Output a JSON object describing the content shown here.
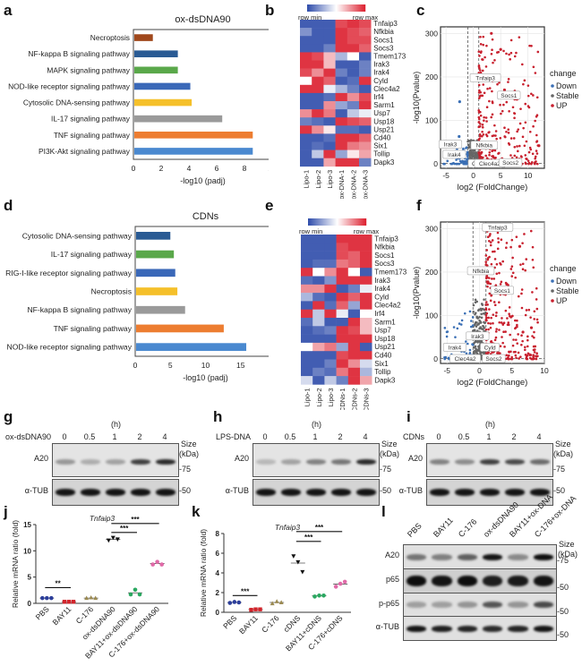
{
  "panel_labels": {
    "a": "a",
    "b": "b",
    "c": "c",
    "d": "d",
    "e": "e",
    "f": "f",
    "g": "g",
    "h": "h",
    "i": "i",
    "j": "j",
    "k": "k",
    "l": "l"
  },
  "chart_data": [
    {
      "id": "a",
      "type": "bar",
      "orientation": "horizontal",
      "title": "ox-dsDNA90",
      "xlabel": "-log10 (padj)",
      "xlim": [
        0,
        10
      ],
      "xticks": [
        0,
        2,
        4,
        6,
        8,
        10
      ],
      "categories": [
        "Necroptosis",
        "NF-kappa B signaling pathway",
        "MAPK signaling pathway",
        "NOD-like receptor signaling pathway",
        "Cytosolic DNA-sensing pathway",
        "IL-17 signaling pathway",
        "TNF signaling pathway",
        "PI3K-Akt signaling pathway"
      ],
      "values": [
        1.4,
        3.2,
        3.2,
        4.1,
        4.2,
        6.4,
        8.6,
        8.6
      ],
      "colors": [
        "#a0481c",
        "#2a5b94",
        "#5aa84a",
        "#3a68b8",
        "#f5c02a",
        "#9a9a9a",
        "#ed7d31",
        "#4a89d0"
      ]
    },
    {
      "id": "b",
      "type": "heatmap",
      "legend": {
        "min_label": "row min",
        "max_label": "row max"
      },
      "columns": [
        "Lipo-1",
        "Lipo-2",
        "Lipo-3",
        "ox-DNA-1",
        "ox-DNA-2",
        "ox-DNA-3"
      ],
      "rows": [
        "Tnfaip3",
        "Nfkbia",
        "Socs1",
        "Socs3",
        "Tmem173",
        "Irak3",
        "Irak4",
        "Cyld",
        "Clec4a2",
        "Irf4",
        "Sarm1",
        "Usp7",
        "Usp18",
        "Usp21",
        "Cd40",
        "Six1",
        "Tollip",
        "Dapk3"
      ],
      "values": [
        [
          -0.9,
          -0.9,
          -0.9,
          0.8,
          0.9,
          0.8
        ],
        [
          -0.6,
          -0.9,
          -0.9,
          0.9,
          0.8,
          0.7
        ],
        [
          -0.9,
          -0.9,
          -0.9,
          0.9,
          0.8,
          0.8
        ],
        [
          -0.9,
          -0.9,
          -0.7,
          0.9,
          0.9,
          0.7
        ],
        [
          0.9,
          0.8,
          0.3,
          -0.4,
          0.0,
          -0.9
        ],
        [
          0.9,
          0.9,
          0.3,
          -0.9,
          -0.9,
          -0.7
        ],
        [
          0.8,
          0.5,
          0.9,
          -0.7,
          -0.9,
          -0.7
        ],
        [
          0.0,
          0.9,
          0.7,
          -0.9,
          -0.8,
          0.9
        ],
        [
          0.9,
          0.9,
          -0.1,
          -0.4,
          -0.7,
          -0.9
        ],
        [
          -0.9,
          -0.9,
          -0.8,
          0.9,
          0.5,
          0.8
        ],
        [
          -0.9,
          -0.9,
          0.5,
          -0.5,
          -0.7,
          0.9
        ],
        [
          0.5,
          0.9,
          0.6,
          -0.9,
          -0.3,
          -0.1
        ],
        [
          -0.7,
          -0.8,
          -0.9,
          0.9,
          0.8,
          0.7
        ],
        [
          0.9,
          0.5,
          0.1,
          -0.8,
          -0.8,
          -0.9
        ],
        [
          -0.9,
          -0.9,
          -0.8,
          0.9,
          0.9,
          0.7
        ],
        [
          -0.9,
          -0.8,
          -0.9,
          0.9,
          0.6,
          0.5
        ],
        [
          -0.9,
          -0.3,
          0.9,
          -0.5,
          0.1,
          0.4
        ],
        [
          -0.9,
          -0.9,
          0.4,
          0.9,
          0.9,
          -0.7
        ]
      ]
    },
    {
      "id": "c",
      "type": "scatter",
      "subtype": "volcano",
      "xlabel": "log2 (FoldChange)",
      "ylabel": "-log10(Pvalue)",
      "xlim": [
        -6,
        13
      ],
      "ylim": [
        -10,
        315
      ],
      "xticks": [
        -5,
        0,
        5,
        10
      ],
      "yticks": [
        0,
        100,
        200,
        300
      ],
      "threshold_x": [
        -1,
        1
      ],
      "legend": {
        "title": "change",
        "position": "right",
        "items": [
          {
            "name": "Down",
            "color": "#3a6fb5"
          },
          {
            "name": "Stable",
            "color": "#666666"
          },
          {
            "name": "UP",
            "color": "#c8202e"
          }
        ]
      },
      "annotations": [
        {
          "text": "Tnfaip3",
          "x": 2.2,
          "y": 195
        },
        {
          "text": "Socs1",
          "x": 6.5,
          "y": 155
        },
        {
          "text": "Irak3",
          "x": -4.2,
          "y": 42
        },
        {
          "text": "Irak4",
          "x": -3.5,
          "y": 19
        },
        {
          "text": "Nfkbia",
          "x": 2.0,
          "y": 40
        },
        {
          "text": "Cyld",
          "x": 0.8,
          "y": -2
        },
        {
          "text": "Clec4a2",
          "x": 3.0,
          "y": -2
        },
        {
          "text": "Socs2",
          "x": 6.8,
          "y": 0
        }
      ],
      "highlight_points": [
        {
          "x": -2.5,
          "y": 143,
          "group": "Down"
        },
        {
          "x": -2.6,
          "y": 63,
          "group": "Down"
        },
        {
          "x": 5.7,
          "y": 170,
          "group": "UP"
        },
        {
          "x": 3.3,
          "y": 300,
          "group": "UP"
        },
        {
          "x": 5.0,
          "y": 263,
          "group": "UP"
        },
        {
          "x": 12.0,
          "y": 42,
          "group": "UP"
        }
      ]
    },
    {
      "id": "d",
      "type": "bar",
      "orientation": "horizontal",
      "title": "CDNs",
      "xlabel": "-log10 (padj)",
      "xlim": [
        0,
        20
      ],
      "xticks": [
        0,
        5,
        10,
        15,
        20
      ],
      "categories": [
        "Cytosolic DNA-sensing pathway",
        "IL-17 signaling pathway",
        "RIG-I-like receptor signaling pathway",
        "Necroptosis",
        "NF-kappa B signaling pathway",
        "TNF signaling pathway",
        "NOD-like receptor signaling pathway"
      ],
      "values": [
        5.0,
        5.5,
        5.7,
        6.0,
        7.1,
        12.6,
        15.8
      ],
      "colors": [
        "#2a5b94",
        "#5aa84a",
        "#3a68b8",
        "#f5c02a",
        "#9a9a9a",
        "#ed7d31",
        "#4a89d0"
      ]
    },
    {
      "id": "e",
      "type": "heatmap",
      "legend": {
        "min_label": "row min",
        "max_label": "row max"
      },
      "columns": [
        "Lipo-1",
        "Lipo-2",
        "Lipo-3",
        "CDNs-1",
        "CDNs-2",
        "CDNs-3"
      ],
      "rows": [
        "Tnfaip3",
        "Nfkbia",
        "Socs1",
        "Socs3",
        "Tmem173",
        "Irak3",
        "Irak4",
        "Cyld",
        "Clec4a2",
        "Irf4",
        "Sarm1",
        "Usp7",
        "Usp18",
        "Usp21",
        "Cd40",
        "Six1",
        "Tollip",
        "Dapk3"
      ],
      "values": [
        [
          -0.9,
          -0.9,
          -0.9,
          0.9,
          0.9,
          0.9
        ],
        [
          -0.9,
          -0.9,
          -0.9,
          0.8,
          0.9,
          0.9
        ],
        [
          -0.9,
          -0.9,
          -0.9,
          0.8,
          0.7,
          0.9
        ],
        [
          -0.9,
          -0.8,
          -0.8,
          0.6,
          0.7,
          0.9
        ],
        [
          0.9,
          0.0,
          0.5,
          0.9,
          0.0,
          -0.9
        ],
        [
          -0.8,
          -0.9,
          -0.6,
          0.9,
          0.9,
          0.9
        ],
        [
          0.5,
          0.5,
          0.9,
          -0.9,
          -0.7,
          -0.1
        ],
        [
          -0.4,
          -0.8,
          -0.9,
          0.9,
          0.7,
          0.9
        ],
        [
          -0.9,
          0.9,
          -0.8,
          0.7,
          -0.5,
          0.9
        ],
        [
          0.9,
          -0.3,
          0.9,
          -0.1,
          -0.9,
          0.0
        ],
        [
          -0.8,
          -0.3,
          -0.9,
          -0.9,
          0.9,
          0.3
        ],
        [
          -0.9,
          -0.8,
          -0.7,
          0.9,
          0.8,
          0.3
        ],
        [
          -0.9,
          -0.9,
          -0.9,
          0.9,
          0.9,
          0.9
        ],
        [
          0.0,
          0.4,
          0.6,
          -0.5,
          0.9,
          -0.9
        ],
        [
          -0.9,
          -0.9,
          -0.9,
          0.8,
          0.9,
          0.9
        ],
        [
          -0.9,
          -0.9,
          -0.7,
          0.9,
          0.5,
          -0.2
        ],
        [
          -0.9,
          -0.7,
          -0.8,
          0.6,
          0.9,
          -0.4
        ],
        [
          -0.2,
          -0.9,
          -0.3,
          -0.7,
          0.9,
          0.4
        ]
      ]
    },
    {
      "id": "f",
      "type": "scatter",
      "subtype": "volcano",
      "xlabel": "log2 (FoldChange)",
      "ylabel": "-log10(Pvalue)",
      "xlim": [
        -6,
        10
      ],
      "ylim": [
        -10,
        315
      ],
      "xticks": [
        -5,
        0,
        5,
        10
      ],
      "yticks": [
        0,
        100,
        200,
        300
      ],
      "threshold_x": [
        -1,
        1
      ],
      "legend": {
        "title": "change",
        "position": "right",
        "items": [
          {
            "name": "Down",
            "color": "#3a6fb5"
          },
          {
            "name": "Stable",
            "color": "#666666"
          },
          {
            "name": "UP",
            "color": "#c8202e"
          }
        ]
      },
      "annotations": [
        {
          "text": "Tnfaip3",
          "x": 2.8,
          "y": 300
        },
        {
          "text": "Nfkbia",
          "x": 0.2,
          "y": 200
        },
        {
          "text": "Socs1",
          "x": 3.5,
          "y": 155
        },
        {
          "text": "Irak3",
          "x": -0.3,
          "y": 50
        },
        {
          "text": "Irak4",
          "x": -3.8,
          "y": 24
        },
        {
          "text": "Cyld",
          "x": 1.6,
          "y": 24
        },
        {
          "text": "Clec4a2",
          "x": -2.2,
          "y": -2
        },
        {
          "text": "Socs2",
          "x": 2.2,
          "y": -2
        }
      ],
      "highlight_points": [
        {
          "x": 6.2,
          "y": 259,
          "group": "UP"
        },
        {
          "x": 4.2,
          "y": 172,
          "group": "UP"
        },
        {
          "x": 8.0,
          "y": 72,
          "group": "UP"
        },
        {
          "x": 6.7,
          "y": 62,
          "group": "UP"
        }
      ]
    },
    {
      "id": "j",
      "type": "scatter",
      "subtype": "dot-plot",
      "title": "Tnfaip3",
      "ylabel": "Relative mRNA ratio (fold)",
      "ylim": [
        0,
        15
      ],
      "yticks": [
        0,
        5,
        10,
        15
      ],
      "categories": [
        "PBS",
        "BAY11",
        "C-176",
        "ox-dsDNA90",
        "BAY11+ox-dsDNA90",
        "C-176+ox-dsDNA90"
      ],
      "series": [
        {
          "name": "PBS",
          "values": [
            1.0,
            1.0,
            1.0
          ],
          "mean": 1.0,
          "color": "#2c3e9a",
          "marker": "circle"
        },
        {
          "name": "BAY11",
          "values": [
            0.3,
            0.3,
            0.3
          ],
          "mean": 0.3,
          "color": "#d2232a",
          "marker": "square"
        },
        {
          "name": "C-176",
          "values": [
            1.0,
            1.1,
            1.0
          ],
          "mean": 1.0,
          "color": "#9b8a52",
          "marker": "triangle"
        },
        {
          "name": "ox-dsDNA90",
          "values": [
            12.0,
            12.5,
            12.2
          ],
          "mean": 12.2,
          "color": "#111111",
          "marker": "triangle-down"
        },
        {
          "name": "BAY11+ox-dsDNA90",
          "values": [
            1.7,
            2.6,
            1.7
          ],
          "mean": 2.0,
          "color": "#2aa860",
          "marker": "circle"
        },
        {
          "name": "C-176+ox-dsDNA90",
          "values": [
            7.4,
            7.9,
            7.4
          ],
          "mean": 7.6,
          "color": "#e06aa8",
          "marker": "circle"
        }
      ],
      "significance": [
        {
          "from": "PBS",
          "to": "BAY11",
          "label": "**",
          "y": 3.0
        },
        {
          "from": "ox-dsDNA90",
          "to": "BAY11+ox-dsDNA90",
          "label": "***",
          "y": 13.5
        },
        {
          "from": "ox-dsDNA90",
          "to": "C-176+ox-dsDNA90",
          "label": "***",
          "y": 15.2
        }
      ]
    },
    {
      "id": "k",
      "type": "scatter",
      "subtype": "dot-plot",
      "title": "Tnfaip3",
      "ylabel": "Relative mRNA ratio (fold)",
      "ylim": [
        0,
        8
      ],
      "yticks": [
        0,
        2,
        4,
        6,
        8
      ],
      "categories": [
        "PBS",
        "BAY11",
        "C-176",
        "cDNS",
        "BAY11+cDNS",
        "C-176+cDNS"
      ],
      "series": [
        {
          "name": "PBS",
          "values": [
            0.95,
            1.05,
            1.0
          ],
          "mean": 1.0,
          "color": "#2c3e9a",
          "marker": "circle"
        },
        {
          "name": "BAY11",
          "values": [
            0.25,
            0.3,
            0.3
          ],
          "mean": 0.28,
          "color": "#d2232a",
          "marker": "square"
        },
        {
          "name": "C-176",
          "values": [
            0.9,
            1.1,
            1.0
          ],
          "mean": 1.0,
          "color": "#9b8a52",
          "marker": "triangle"
        },
        {
          "name": "cDNS",
          "values": [
            5.7,
            5.1,
            4.1
          ],
          "mean": 5.0,
          "color": "#111111",
          "marker": "triangle-down"
        },
        {
          "name": "BAY11+cDNS",
          "values": [
            1.6,
            1.7,
            1.7
          ],
          "mean": 1.67,
          "color": "#2aa860",
          "marker": "circle"
        },
        {
          "name": "C-176+cDNS",
          "values": [
            2.6,
            2.9,
            3.1
          ],
          "mean": 2.87,
          "color": "#e06aa8",
          "marker": "circle"
        }
      ],
      "significance": [
        {
          "from": "PBS",
          "to": "BAY11",
          "label": "***",
          "y": 1.7
        },
        {
          "from": "cDNS",
          "to": "BAY11+cDNS",
          "label": "***",
          "y": 7.2
        },
        {
          "from": "cDNS",
          "to": "C-176+cDNS",
          "label": "***",
          "y": 8.2
        }
      ]
    }
  ],
  "blots": {
    "g": {
      "treatment": "ox-dsDNA90",
      "unit": "(h)",
      "timepoints": [
        "0",
        "0.5",
        "1",
        "2",
        "4"
      ],
      "size_label": "Size",
      "size_unit": "(kDa)",
      "rows": [
        {
          "name": "A20",
          "marker": "-75",
          "intensities": [
            0.35,
            0.25,
            0.3,
            0.75,
            0.85
          ]
        },
        {
          "name": "α-TUB",
          "marker": "-50",
          "intensities": [
            0.95,
            0.95,
            0.95,
            0.95,
            0.95
          ]
        }
      ]
    },
    "h": {
      "treatment": "LPS-DNA",
      "unit": "(h)",
      "timepoints": [
        "0",
        "0.5",
        "1",
        "2",
        "4"
      ],
      "size_label": "Size",
      "size_unit": "(kDa)",
      "rows": [
        {
          "name": "A20",
          "marker": "-75",
          "intensities": [
            0.2,
            0.3,
            0.45,
            0.5,
            0.85
          ]
        },
        {
          "name": "α-TUB",
          "marker": "-50",
          "intensities": [
            0.95,
            0.95,
            0.95,
            0.95,
            0.95
          ]
        }
      ]
    },
    "i": {
      "treatment": "CDNs",
      "unit": "(h)",
      "timepoints": [
        "0",
        "0.5",
        "1",
        "2",
        "4"
      ],
      "size_label": "Size",
      "size_unit": "(kDa)",
      "rows": [
        {
          "name": "A20",
          "marker": "-75",
          "intensities": [
            0.45,
            0.4,
            0.75,
            0.7,
            0.55
          ]
        },
        {
          "name": "α-TUB",
          "marker": "-50",
          "intensities": [
            0.95,
            0.95,
            0.95,
            0.95,
            0.95
          ]
        }
      ]
    },
    "l": {
      "lanes": [
        "PBS",
        "BAY11",
        "C-176",
        "ox-dsDNA90",
        "BAY11+ox-DNA",
        "C-176+ox-DNA"
      ],
      "size_label": "Size",
      "size_unit": "(kDa)",
      "rows": [
        {
          "name": "A20",
          "marker": "-75",
          "intensities": [
            0.5,
            0.45,
            0.6,
            0.95,
            0.4,
            0.98
          ]
        },
        {
          "name": "p65",
          "marker": "-50",
          "intensities": [
            0.98,
            0.95,
            0.98,
            0.9,
            0.92,
            0.95
          ]
        },
        {
          "name": "p-p65",
          "marker": "-50",
          "intensities": [
            0.3,
            0.3,
            0.35,
            0.65,
            0.35,
            0.7
          ]
        },
        {
          "name": "α-TUB",
          "marker": "-50",
          "intensities": [
            0.95,
            0.9,
            0.88,
            0.85,
            0.88,
            0.95
          ]
        }
      ]
    }
  }
}
